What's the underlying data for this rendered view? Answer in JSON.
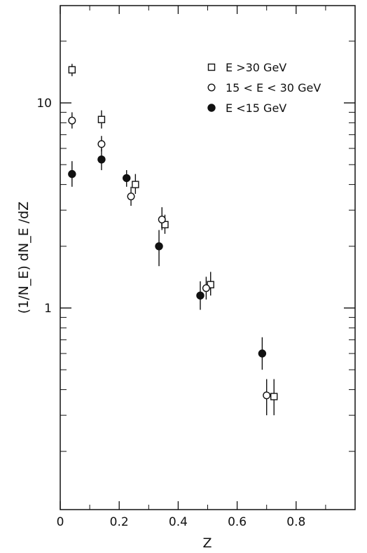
{
  "chart_data": {
    "type": "scatter",
    "xlabel": "Z",
    "ylabel": "(1/N_E) dN_E /dZ",
    "xlim": [
      0,
      1.0
    ],
    "ylim": [
      0.2,
      25
    ],
    "yscale": "log",
    "x_ticks": [
      0,
      0.2,
      0.4,
      0.6,
      0.8
    ],
    "x_tick_labels": [
      "0",
      "0.2",
      "0.4",
      "0.6",
      "0.8"
    ],
    "y_major_ticks": [
      1,
      10
    ],
    "y_major_labels": [
      "1",
      "10"
    ],
    "grid": false,
    "legend_position": "top-right",
    "series": [
      {
        "name": "E >30 GeV",
        "marker": "open-square",
        "points": [
          {
            "x": 0.04,
            "y": 14.5,
            "ylo": 13.5,
            "yhi": 15.5
          },
          {
            "x": 0.14,
            "y": 8.3,
            "ylo": 7.5,
            "yhi": 9.2
          },
          {
            "x": 0.255,
            "y": 4.0,
            "ylo": 3.6,
            "yhi": 4.5
          },
          {
            "x": 0.355,
            "y": 2.55,
            "ylo": 2.3,
            "yhi": 2.85
          },
          {
            "x": 0.51,
            "y": 1.3,
            "ylo": 1.15,
            "yhi": 1.5
          },
          {
            "x": 0.725,
            "y": 0.37,
            "ylo": 0.3,
            "yhi": 0.45
          }
        ]
      },
      {
        "name": "15 < E < 30 GeV",
        "marker": "open-circle",
        "points": [
          {
            "x": 0.04,
            "y": 8.2,
            "ylo": 7.5,
            "yhi": 9.0
          },
          {
            "x": 0.14,
            "y": 6.3,
            "ylo": 5.8,
            "yhi": 6.9
          },
          {
            "x": 0.24,
            "y": 3.5,
            "ylo": 3.15,
            "yhi": 3.9
          },
          {
            "x": 0.345,
            "y": 2.7,
            "ylo": 2.4,
            "yhi": 3.1
          },
          {
            "x": 0.495,
            "y": 1.25,
            "ylo": 1.1,
            "yhi": 1.42
          },
          {
            "x": 0.7,
            "y": 0.375,
            "ylo": 0.3,
            "yhi": 0.45
          }
        ]
      },
      {
        "name": "E <15 GeV",
        "marker": "filled-circle",
        "points": [
          {
            "x": 0.04,
            "y": 4.5,
            "ylo": 3.9,
            "yhi": 5.2
          },
          {
            "x": 0.14,
            "y": 5.3,
            "ylo": 4.7,
            "yhi": 6.0
          },
          {
            "x": 0.225,
            "y": 4.3,
            "ylo": 3.9,
            "yhi": 4.7
          },
          {
            "x": 0.335,
            "y": 2.0,
            "ylo": 1.6,
            "yhi": 2.4
          },
          {
            "x": 0.475,
            "y": 1.15,
            "ylo": 0.98,
            "yhi": 1.35
          },
          {
            "x": 0.685,
            "y": 0.6,
            "ylo": 0.5,
            "yhi": 0.72
          }
        ]
      }
    ]
  }
}
